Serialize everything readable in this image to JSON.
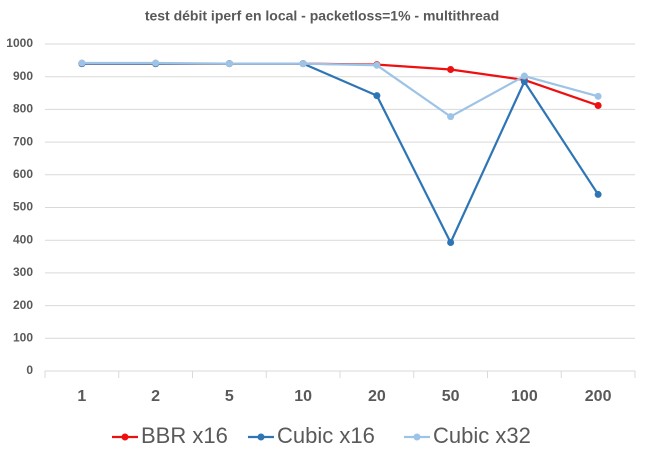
{
  "chart_data": {
    "type": "line",
    "title": "test débit iperf en local - packetloss=1% - multithread",
    "categories": [
      "1",
      "2",
      "5",
      "10",
      "20",
      "50",
      "100",
      "200"
    ],
    "series": [
      {
        "name": "BBR x16",
        "color": "#ee1010",
        "values": [
          940,
          940,
          940,
          940,
          937,
          922,
          890,
          812
        ]
      },
      {
        "name": "Cubic x16",
        "color": "#2e75b6",
        "values": [
          940,
          940,
          940,
          940,
          842,
          393,
          885,
          540
        ]
      },
      {
        "name": "Cubic x32",
        "color": "#9dc3e6",
        "values": [
          942,
          942,
          940,
          940,
          935,
          778,
          902,
          840
        ]
      }
    ],
    "ylim": [
      0,
      1000
    ],
    "yticks": [
      0,
      100,
      200,
      300,
      400,
      500,
      600,
      700,
      800,
      900,
      1000
    ],
    "grid": true,
    "legend": "bottom"
  }
}
